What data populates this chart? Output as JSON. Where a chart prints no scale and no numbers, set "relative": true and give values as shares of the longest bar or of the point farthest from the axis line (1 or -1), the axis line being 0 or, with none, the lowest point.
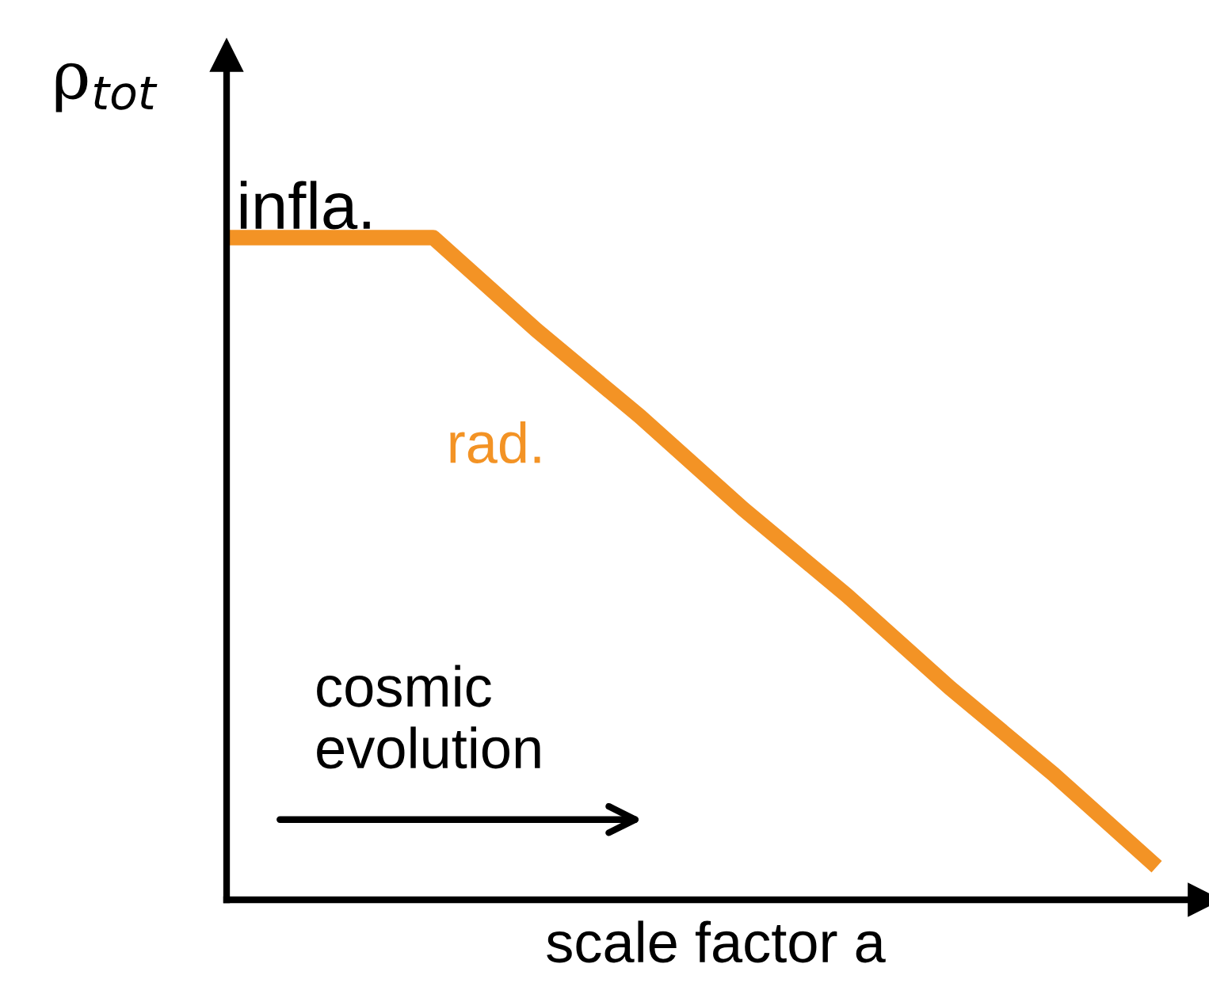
{
  "chart_data": {
    "type": "line",
    "relative": true,
    "ylabel": "ρ$_{tot}$",
    "xlabel": "scale factor a",
    "categories": [
      null,
      null,
      null,
      null,
      null,
      null,
      null,
      null,
      null,
      null
    ],
    "series": [
      {
        "color": "#f39325",
        "values": [
          1,
          1,
          1,
          0.86,
          0.73,
          0.59,
          0.46,
          0.32,
          0.19,
          0.05
        ]
      }
    ],
    "annotations": [
      "infla.",
      "rad.",
      "cosmic evolution"
    ],
    "grid": false,
    "legend": false,
    "marker": "none",
    "line_style": "solid"
  }
}
